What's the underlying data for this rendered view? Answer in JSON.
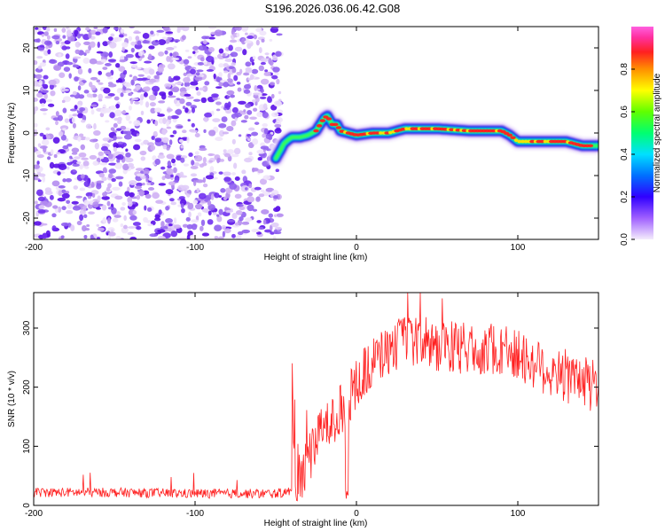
{
  "title": "S196.2026.036.06.42.G08",
  "chart_data": [
    {
      "type": "heatmap",
      "name": "spectrogram",
      "xlabel": "Height of straight line (km)",
      "ylabel": "Frequency (Hz)",
      "xlim": [
        -200,
        150
      ],
      "ylim": [
        -25,
        25
      ],
      "xticks": [
        -200,
        -100,
        0,
        100
      ],
      "yticks": [
        -20,
        -10,
        0,
        10,
        20
      ],
      "noise_region": {
        "x_range": [
          -200,
          -50
        ],
        "y_range": [
          -25,
          25
        ],
        "amplitude": "0.1-0.2"
      },
      "signal_track": {
        "x": [
          -50,
          -47,
          -45,
          -42,
          -40,
          -35,
          -30,
          -25,
          -20,
          -18,
          -15,
          -12,
          -10,
          -5,
          0,
          10,
          20,
          30,
          50,
          70,
          90,
          95,
          100,
          110,
          120,
          130,
          140,
          150
        ],
        "y": [
          -6,
          -4,
          -2.5,
          -1.5,
          -1,
          -1,
          -0.5,
          0.5,
          3.5,
          4,
          2,
          2,
          0.5,
          0,
          -0.5,
          0,
          0,
          1,
          1,
          0.5,
          0.5,
          -0.5,
          -2,
          -2,
          -2,
          -2,
          -3,
          -3
        ],
        "peak_amplitude": 0.9
      },
      "colorbar": {
        "label": "Normalized spectral amplitude",
        "range": [
          0,
          1
        ],
        "ticks": [
          0.0,
          0.2,
          0.4,
          0.6,
          0.8
        ],
        "tick_labels": [
          "0.0",
          "0.2",
          "0.4",
          "0.6",
          "0.8"
        ]
      },
      "xtick_labels": [
        "-200",
        "-100",
        "0",
        "100"
      ],
      "ytick_labels": [
        "-20",
        "-10",
        "0",
        "10",
        "20"
      ]
    },
    {
      "type": "line",
      "name": "snr",
      "xlabel": "Height of straight line (km)",
      "ylabel": "SNR (10 * v/v)",
      "xlim": [
        -200,
        150
      ],
      "ylim": [
        0,
        360
      ],
      "xticks": [
        -200,
        -100,
        0,
        100
      ],
      "yticks": [
        0,
        100,
        200,
        300
      ],
      "xtick_labels": [
        "-200",
        "-100",
        "0",
        "100"
      ],
      "ytick_labels": [
        "0",
        "100",
        "200",
        "300"
      ],
      "color": "#ff2020",
      "trend": {
        "x": [
          -200,
          -150,
          -100,
          -50,
          -38,
          -30,
          -20,
          -10,
          -5,
          0,
          10,
          20,
          30,
          50,
          70,
          90,
          110,
          130,
          150
        ],
        "y": [
          22,
          22,
          20,
          20,
          25,
          80,
          130,
          160,
          180,
          210,
          240,
          265,
          280,
          270,
          265,
          265,
          240,
          215,
          200
        ]
      }
    }
  ]
}
